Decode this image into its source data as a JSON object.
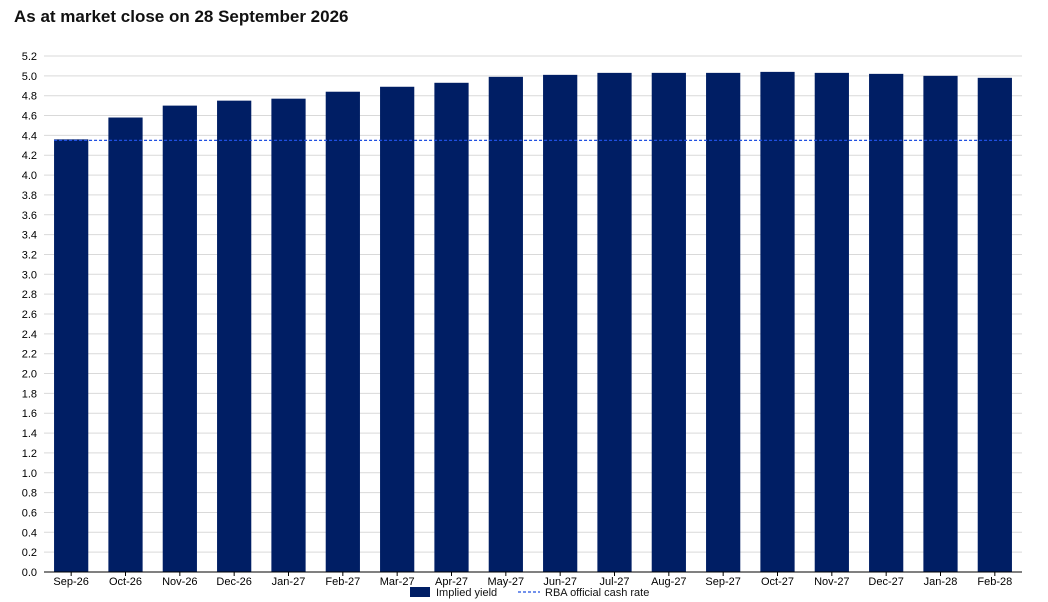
{
  "page": {
    "title": "As at market close on 28 September 2026"
  },
  "chart_data": {
    "type": "bar",
    "title": "As at market close on 28 September 2026",
    "xlabel": "",
    "ylabel": "",
    "categories": [
      "Sep-26",
      "Oct-26",
      "Nov-26",
      "Dec-26",
      "Jan-27",
      "Feb-27",
      "Mar-27",
      "Apr-27",
      "May-27",
      "Jun-27",
      "Jul-27",
      "Aug-27",
      "Sep-27",
      "Oct-27",
      "Nov-27",
      "Dec-27",
      "Jan-28",
      "Feb-28"
    ],
    "series": [
      {
        "name": "Implied yield",
        "kind": "bar",
        "color": "#001e64",
        "values": [
          4.36,
          4.58,
          4.7,
          4.75,
          4.77,
          4.84,
          4.89,
          4.93,
          4.99,
          5.01,
          5.03,
          5.03,
          5.03,
          5.04,
          5.03,
          5.02,
          5.0,
          4.98
        ]
      },
      {
        "name": "RBA official cash rate",
        "kind": "line",
        "style": "dashed",
        "color": "#1f4fe0",
        "value": 4.35
      }
    ],
    "ylim": [
      0,
      5.2
    ],
    "ytick_step": 0.2,
    "grid": true,
    "legend_position": "bottom-center"
  }
}
